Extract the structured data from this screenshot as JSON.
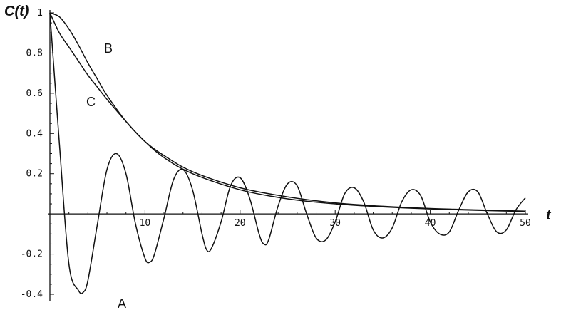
{
  "chart_data": {
    "type": "line",
    "title": "",
    "xlabel": "t",
    "ylabel": "C(t)",
    "xlim": [
      0,
      50
    ],
    "ylim": [
      -0.4,
      1
    ],
    "grid": false,
    "x_ticks": [
      10,
      20,
      30,
      40,
      50
    ],
    "x_tick_labels": [
      "10",
      "20",
      "30",
      "40",
      "50"
    ],
    "y_ticks": [
      -0.4,
      -0.2,
      0.2,
      0.4,
      0.6,
      0.8,
      1
    ],
    "y_tick_labels": [
      "-0.4",
      "-0.2",
      "0.2",
      "0.4",
      "0.6",
      "0.8",
      "1"
    ],
    "series": [
      {
        "name": "A",
        "x": [
          0,
          1,
          2,
          3,
          3.5,
          4,
          5,
          6,
          7,
          8,
          9,
          10,
          10.5,
          11,
          12,
          13,
          14,
          15,
          16,
          16.5,
          17,
          18,
          19,
          20,
          21,
          22,
          22.5,
          23,
          24,
          25,
          26,
          27,
          28,
          29,
          30,
          31,
          32,
          33,
          34,
          35,
          36,
          37,
          38,
          39,
          40,
          41,
          42,
          43,
          44,
          45,
          46,
          47,
          48,
          49,
          50
        ],
        "y": [
          1,
          0.35,
          -0.25,
          -0.38,
          -0.39,
          -0.33,
          -0.05,
          0.22,
          0.3,
          0.2,
          -0.05,
          -0.22,
          -0.24,
          -0.2,
          -0.02,
          0.17,
          0.22,
          0.12,
          -0.1,
          -0.18,
          -0.17,
          -0.04,
          0.14,
          0.18,
          0.08,
          -0.1,
          -0.15,
          -0.13,
          0.04,
          0.15,
          0.14,
          0.0,
          -0.12,
          -0.13,
          -0.04,
          0.1,
          0.13,
          0.06,
          -0.08,
          -0.12,
          -0.07,
          0.06,
          0.12,
          0.09,
          -0.04,
          -0.1,
          -0.09,
          0.02,
          0.11,
          0.11,
          0.0,
          -0.09,
          -0.08,
          0.02,
          0.08
        ]
      },
      {
        "name": "B",
        "x": [
          0,
          1,
          2,
          3,
          4,
          5,
          6,
          8,
          10,
          12,
          15,
          20,
          25,
          30,
          35,
          40,
          45,
          50
        ],
        "y": [
          1,
          0.98,
          0.92,
          0.84,
          0.75,
          0.67,
          0.59,
          0.46,
          0.36,
          0.28,
          0.2,
          0.12,
          0.075,
          0.05,
          0.035,
          0.025,
          0.018,
          0.012
        ]
      },
      {
        "name": "C",
        "x": [
          0,
          1,
          2,
          3,
          4,
          5,
          6,
          8,
          10,
          12,
          15,
          20,
          25,
          30,
          35,
          40,
          45,
          50
        ],
        "y": [
          1,
          0.9,
          0.83,
          0.76,
          0.69,
          0.63,
          0.57,
          0.46,
          0.36,
          0.29,
          0.21,
          0.13,
          0.085,
          0.055,
          0.038,
          0.027,
          0.02,
          0.014
        ]
      }
    ]
  }
}
